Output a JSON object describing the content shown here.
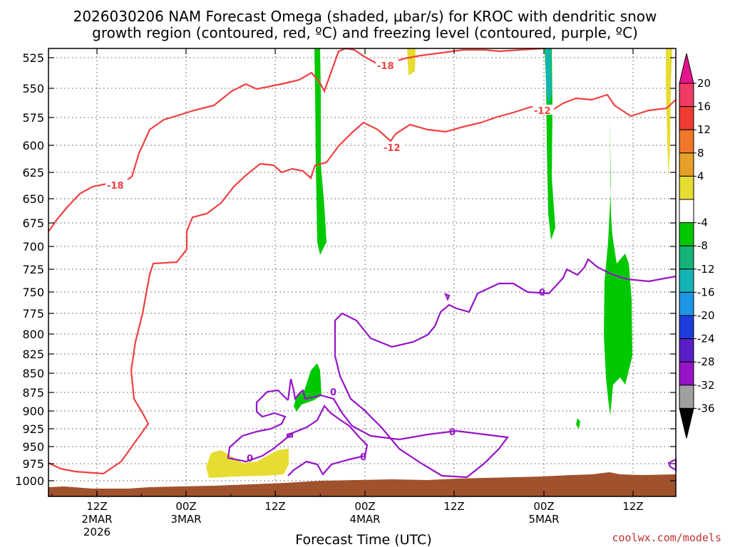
{
  "chart_data": {
    "type": "time-height cross section",
    "title_line1": "2026030206 NAM Forecast Omega (shaded, μbar/s) for KROC with dendritic snow",
    "title_line2": "growth region (contoured, red, ºC) and freezing level (contoured, purple, ºC)",
    "xlabel": "Forecast Time (UTC)",
    "credit": "coolwx.com/models",
    "y_axis": {
      "unit": "hPa",
      "ticks": [
        "525",
        "550",
        "575",
        "600",
        "625",
        "650",
        "675",
        "700",
        "725",
        "750",
        "775",
        "800",
        "825",
        "850",
        "875",
        "900",
        "925",
        "950",
        "975",
        "1000"
      ]
    },
    "x_axis": {
      "ticks": [
        {
          "label1": "12Z",
          "label2": "2MAR",
          "label3": "2026"
        },
        {
          "label1": "00Z",
          "label2": "3MAR",
          "label3": ""
        },
        {
          "label1": "12Z",
          "label2": "",
          "label3": ""
        },
        {
          "label1": "00Z",
          "label2": "4MAR",
          "label3": ""
        },
        {
          "label1": "12Z",
          "label2": "",
          "label3": ""
        },
        {
          "label1": "00Z",
          "label2": "5MAR",
          "label3": ""
        },
        {
          "label1": "12Z",
          "label2": "",
          "label3": ""
        }
      ]
    },
    "colorbar": {
      "labels": [
        "20",
        "16",
        "12",
        "8",
        "4",
        "-4",
        "-8",
        "-12",
        "-16",
        "-20",
        "-24",
        "-28",
        "-32",
        "-36"
      ],
      "colors": [
        "#f03c64",
        "#f03c32",
        "#f07828",
        "#e6a028",
        "#e6dc32",
        "#ffffff",
        "#00c800",
        "#14b478",
        "#14b4b4",
        "#1e96e6",
        "#1e3cdc",
        "#5a1ec8",
        "#9614c8",
        "#a0a0a0",
        "#000000"
      ],
      "top_arrow_color": "#e6148c",
      "bottom_arrow_color": "#000000"
    },
    "contour_labels": {
      "dgz_cold": "-18",
      "dgz_warm": "-12",
      "freezing": "0"
    },
    "colors": {
      "dgz": "#f04040",
      "freezing": "#9614c8",
      "terrain": "#a0522d",
      "grid": "#555555"
    }
  }
}
